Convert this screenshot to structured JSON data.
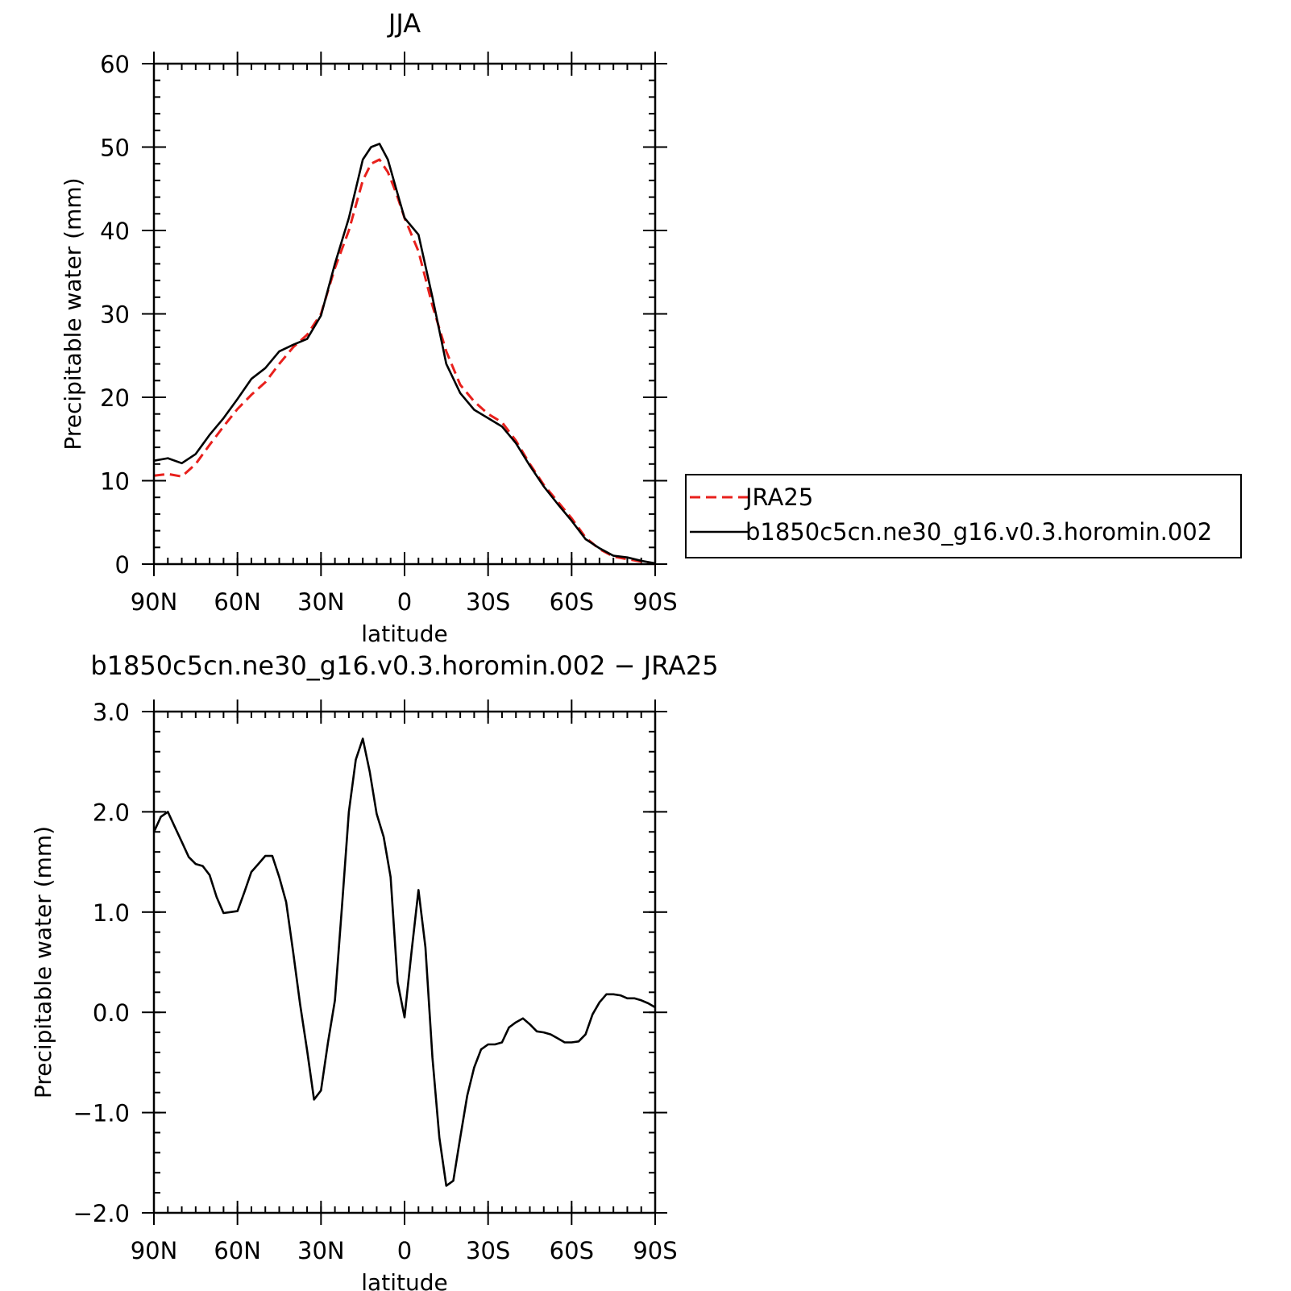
{
  "chart_data": [
    {
      "type": "line",
      "title": "JJA",
      "xlabel": "latitude",
      "ylabel": "Precipitable water (mm)",
      "xlim": [
        90,
        -90
      ],
      "ylim": [
        0,
        60
      ],
      "x_ticks": [
        90,
        60,
        30,
        0,
        -30,
        -60,
        -90
      ],
      "x_tick_labels": [
        "90N",
        "60N",
        "30N",
        "0",
        "30S",
        "60S",
        "90S"
      ],
      "y_ticks": [
        0,
        10,
        20,
        30,
        40,
        50,
        60
      ],
      "y_tick_labels": [
        "0",
        "10",
        "20",
        "30",
        "40",
        "50",
        "60"
      ],
      "y_minor_step": 2,
      "x_minor_step": 5,
      "legend_position": "right",
      "series": [
        {
          "name": "JRA25",
          "color": "#e8201c",
          "dash": true,
          "x": [
            90,
            85,
            80,
            75,
            70,
            65,
            60,
            55,
            50,
            45,
            40,
            35,
            30,
            25,
            20,
            15,
            12,
            9,
            6,
            3,
            0,
            -5,
            -10,
            -15,
            -20,
            -25,
            -30,
            -35,
            -40,
            -45,
            -50,
            -55,
            -60,
            -65,
            -70,
            -75,
            -80,
            -85,
            -90
          ],
          "values": [
            10.6,
            10.8,
            10.5,
            12.0,
            14.3,
            16.5,
            18.6,
            20.3,
            21.8,
            24.0,
            26.0,
            27.5,
            30.0,
            35.5,
            40.0,
            46.0,
            48.0,
            48.5,
            47.0,
            44.5,
            41.5,
            37.5,
            31.0,
            25.5,
            21.5,
            19.5,
            18.0,
            17.0,
            14.8,
            12.0,
            9.5,
            7.5,
            5.5,
            3.2,
            1.8,
            0.9,
            0.6,
            0.3,
            0.0
          ]
        },
        {
          "name": "b1850c5cn.ne30_g16.v0.3.horomin.002",
          "color": "#000000",
          "dash": false,
          "x": [
            90,
            85,
            80,
            75,
            70,
            65,
            60,
            55,
            50,
            45,
            40,
            35,
            30,
            25,
            20,
            15,
            12,
            9,
            6,
            3,
            0,
            -5,
            -10,
            -15,
            -20,
            -25,
            -30,
            -35,
            -40,
            -45,
            -50,
            -55,
            -60,
            -65,
            -70,
            -75,
            -80,
            -85,
            -90
          ],
          "values": [
            12.4,
            12.7,
            12.1,
            13.2,
            15.5,
            17.5,
            19.8,
            22.2,
            23.5,
            25.5,
            26.3,
            27.0,
            29.8,
            36.0,
            41.5,
            48.5,
            50.0,
            50.4,
            48.5,
            45.0,
            41.5,
            39.5,
            32.0,
            24.0,
            20.5,
            18.5,
            17.5,
            16.5,
            14.5,
            11.8,
            9.3,
            7.2,
            5.2,
            3.0,
            1.9,
            1.0,
            0.8,
            0.4,
            0.1
          ]
        }
      ]
    },
    {
      "type": "line",
      "title": "b1850c5cn.ne30_g16.v0.3.horomin.002 − JRA25",
      "xlabel": "latitude",
      "ylabel": "Precipitable water (mm)",
      "xlim": [
        90,
        -90
      ],
      "ylim": [
        -2.0,
        3.0
      ],
      "x_ticks": [
        90,
        60,
        30,
        0,
        -30,
        -60,
        -90
      ],
      "x_tick_labels": [
        "90N",
        "60N",
        "30N",
        "0",
        "30S",
        "60S",
        "90S"
      ],
      "y_ticks": [
        -2.0,
        -1.0,
        0.0,
        1.0,
        2.0,
        3.0
      ],
      "y_tick_labels": [
        "−2.0",
        "−1.0",
        "0.0",
        "1.0",
        "2.0",
        "3.0"
      ],
      "y_minor_step": 0.2,
      "x_minor_step": 5,
      "series": [
        {
          "color": "#000000",
          "x": [
            90,
            87.5,
            85,
            82.5,
            80,
            77.5,
            75,
            72.5,
            70,
            67.5,
            65,
            62.5,
            60,
            57.5,
            55,
            52.5,
            50,
            47.5,
            45,
            42.5,
            40,
            37.5,
            35,
            32.5,
            30,
            27.5,
            25,
            22.5,
            20,
            17.5,
            15,
            12.5,
            10,
            7.5,
            5,
            2.5,
            0,
            -2.5,
            -5,
            -7.5,
            -10,
            -12.5,
            -15,
            -17.5,
            -20,
            -22.5,
            -25,
            -27.5,
            -30,
            -32.5,
            -35,
            -37.5,
            -40,
            -42.5,
            -45,
            -47.5,
            -50,
            -52.5,
            -55,
            -57.5,
            -60,
            -62.5,
            -65,
            -67.5,
            -70,
            -72.5,
            -75,
            -77.5,
            -80,
            -82.5,
            -85,
            -87.5,
            -90
          ],
          "values": [
            1.8,
            1.95,
            2.0,
            1.85,
            1.7,
            1.55,
            1.48,
            1.46,
            1.37,
            1.15,
            0.99,
            1.0,
            1.01,
            1.2,
            1.4,
            1.48,
            1.56,
            1.56,
            1.35,
            1.1,
            0.6,
            0.08,
            -0.38,
            -0.87,
            -0.78,
            -0.3,
            0.12,
            1.05,
            2.0,
            2.52,
            2.73,
            2.4,
            1.98,
            1.75,
            1.35,
            0.3,
            -0.05,
            0.6,
            1.22,
            0.65,
            -0.45,
            -1.25,
            -1.73,
            -1.68,
            -1.25,
            -0.83,
            -0.55,
            -0.37,
            -0.32,
            -0.32,
            -0.3,
            -0.15,
            -0.1,
            -0.06,
            -0.12,
            -0.19,
            -0.2,
            -0.22,
            -0.26,
            -0.3,
            -0.3,
            -0.29,
            -0.22,
            -0.02,
            0.1,
            0.18,
            0.18,
            0.17,
            0.14,
            0.14,
            0.12,
            0.09,
            0.05
          ]
        }
      ]
    }
  ]
}
